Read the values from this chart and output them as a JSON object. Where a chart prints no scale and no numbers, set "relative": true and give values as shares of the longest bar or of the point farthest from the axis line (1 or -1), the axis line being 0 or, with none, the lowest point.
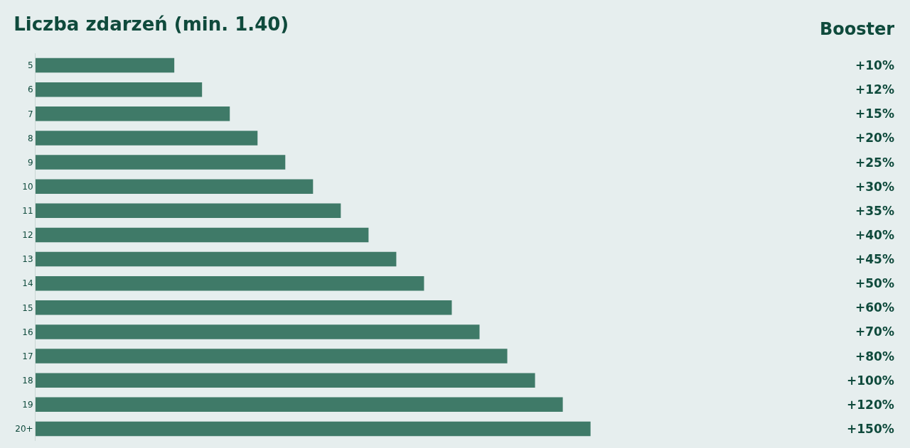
{
  "chart_data": {
    "type": "bar",
    "orientation": "horizontal",
    "relative": true,
    "title": "Liczba zdarzeń (min. 1.40)",
    "categories": [
      "5",
      "6",
      "7",
      "8",
      "9",
      "10",
      "11",
      "12",
      "13",
      "14",
      "15",
      "16",
      "17",
      "18",
      "19",
      "20+"
    ],
    "values": [
      0.25,
      0.3,
      0.35,
      0.4,
      0.45,
      0.5,
      0.55,
      0.6,
      0.65,
      0.7,
      0.75,
      0.8,
      0.85,
      0.9,
      0.95,
      1
    ],
    "color": "#3f7a68",
    "annotations": [
      "Booster",
      "+10%",
      "+12%",
      "+15%",
      "+20%",
      "+25%",
      "+30%",
      "+35%",
      "+40%",
      "+45%",
      "+50%",
      "+60%",
      "+70%",
      "+80%",
      "+100%",
      "+120%",
      "+150%"
    ],
    "grid": false,
    "legend": false
  }
}
